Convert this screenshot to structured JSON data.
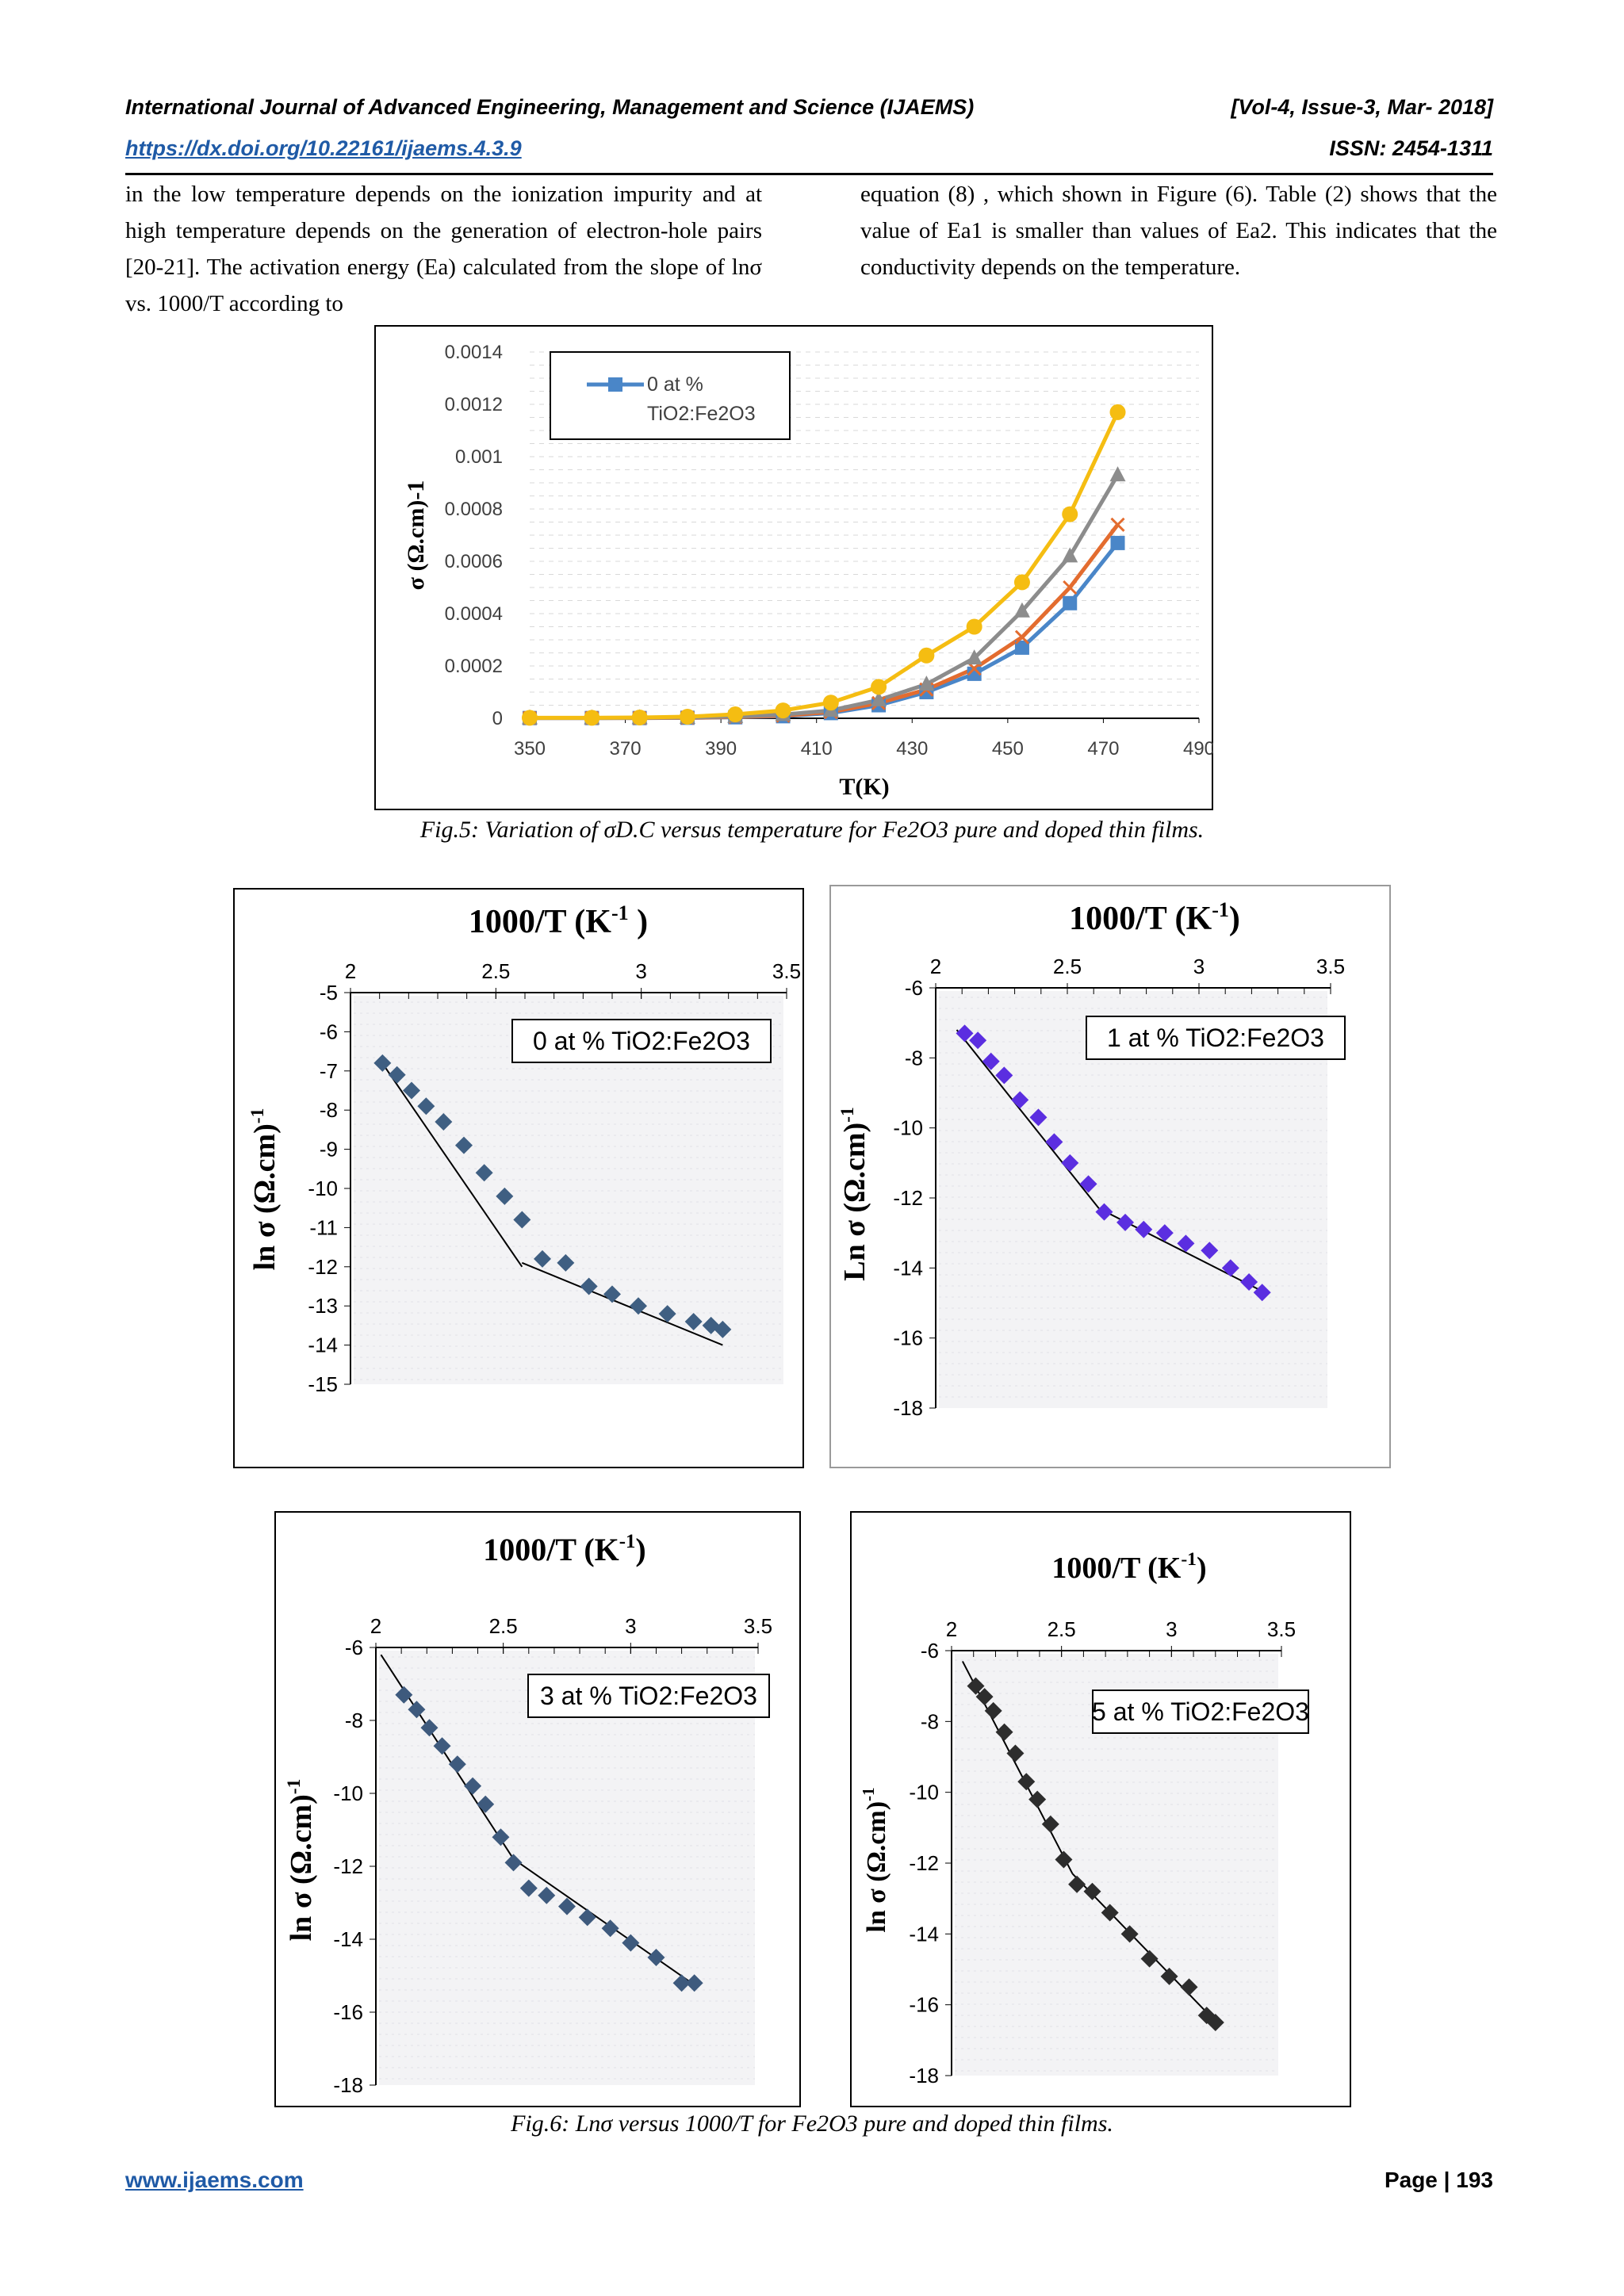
{
  "header": {
    "journal": "International Journal of Advanced Engineering, Management and Science (IJAEMS)",
    "volume": "[Vol-4, Issue-3, Mar- 2018]",
    "doi": "https://dx.doi.org/10.22161/ijaems.4.3.9",
    "issn": "ISSN: 2454-1311"
  },
  "body": {
    "left_column": "in the low temperature depends on the ionization impurity and at high temperature depends on the generation of electron-hole pairs [20-21]. The activation energy (Ea) calculated from the slope of lnσ vs. 1000/T according to",
    "right_column": "equation (8) , which shown in Figure (6). Table (2) shows that the value of Ea1 is smaller than values of Ea2. This indicates that the conductivity depends on the temperature."
  },
  "fig5": {
    "caption": "Fig.5: Variation of σD.C versus temperature for Fe2O3 pure and doped thin films."
  },
  "fig6": {
    "caption": "Fig.6: Lnσ versus 1000/T for Fe2O3 pure and doped thin films."
  },
  "footer": {
    "website": "www.ijaems.com",
    "page": "Page | 193"
  },
  "chart_data": [
    {
      "id": "fig5",
      "type": "line",
      "xlabel": "T(K)",
      "ylabel": "σ (Ω.cm)-1",
      "xlim": [
        350,
        490
      ],
      "ylim": [
        0,
        0.0014
      ],
      "xticks": [
        350,
        370,
        390,
        410,
        430,
        450,
        470,
        490
      ],
      "yticks": [
        0,
        0.0002,
        0.0004,
        0.0006,
        0.0008,
        0.001,
        0.0012,
        0.0014
      ],
      "ytick_labels": [
        "0",
        "0.0002",
        "0.0004",
        "0.0006",
        "0.0008",
        "0.001",
        "0.0012",
        "0.0014"
      ],
      "grid": "dashed horizontal",
      "legend": "top-left",
      "legend_text": "0 at % TiO2:Fe2O3",
      "x": [
        350,
        363,
        373,
        383,
        393,
        403,
        413,
        423,
        433,
        443,
        453,
        463,
        473
      ],
      "series": [
        {
          "name": "0 at % TiO2:Fe2O3",
          "color": "#4a86c8",
          "marker": "square",
          "values": [
            1e-06,
            1e-06,
            1e-06,
            2e-06,
            4e-06,
            8e-06,
            2e-05,
            5e-05,
            0.0001,
            0.00017,
            0.00027,
            0.00044,
            0.00067
          ]
        },
        {
          "color": "#e36c2f",
          "marker": "x",
          "values": [
            1e-06,
            1e-06,
            1e-06,
            2e-06,
            5e-06,
            1e-05,
            2.4e-05,
            5.8e-05,
            0.00011,
            0.00019,
            0.00031,
            0.0005,
            0.00074
          ]
        },
        {
          "color": "#8c8c8c",
          "marker": "triangle",
          "values": [
            1e-06,
            1e-06,
            2e-06,
            3e-06,
            7e-06,
            1.4e-05,
            3e-05,
            7e-05,
            0.00013,
            0.00023,
            0.00041,
            0.00062,
            0.00093
          ]
        },
        {
          "color": "#f5bd12",
          "marker": "circle",
          "values": [
            2e-06,
            2e-06,
            3e-06,
            6e-06,
            1.5e-05,
            3e-05,
            6e-05,
            0.00012,
            0.00024,
            0.00035,
            0.00052,
            0.00078,
            0.00117
          ]
        }
      ]
    },
    {
      "id": "fig6a",
      "type": "scatter",
      "title": "1000/T (K-1 )",
      "ylabel": "ln σ (Ω.cm)-1",
      "legend_text": "0 at % TiO2:Fe2O3",
      "xlim": [
        2,
        3.5
      ],
      "ylim": [
        -15,
        -5
      ],
      "xticks": [
        2,
        2.5,
        3,
        3.5
      ],
      "yticks": [
        -5,
        -6,
        -7,
        -8,
        -9,
        -10,
        -11,
        -12,
        -13,
        -14,
        -15
      ],
      "color": "#3f5f82",
      "x": [
        2.11,
        2.16,
        2.21,
        2.26,
        2.32,
        2.39,
        2.46,
        2.53,
        2.59,
        2.66,
        2.74,
        2.82,
        2.9,
        2.99,
        3.09,
        3.18,
        3.24,
        3.28
      ],
      "y": [
        -6.8,
        -7.1,
        -7.5,
        -7.9,
        -8.3,
        -8.9,
        -9.6,
        -10.2,
        -10.8,
        -11.8,
        -11.9,
        -12.5,
        -12.7,
        -13.0,
        -13.2,
        -13.4,
        -13.5,
        -13.6
      ],
      "fit_lines": [
        [
          [
            2.1,
            -6.7
          ],
          [
            2.59,
            -12.0
          ]
        ],
        [
          [
            2.59,
            -11.9
          ],
          [
            3.28,
            -14.0
          ]
        ]
      ]
    },
    {
      "id": "fig6b",
      "type": "scatter",
      "title": "1000/T (K-1)",
      "ylabel": "Ln σ (Ω.cm)-1",
      "legend_text": "1 at % TiO2:Fe2O3",
      "xlim": [
        2,
        3.5
      ],
      "ylim": [
        -18,
        -6
      ],
      "xticks": [
        2,
        2.5,
        3,
        3.5
      ],
      "yticks": [
        -6,
        -8,
        -10,
        -12,
        -14,
        -16,
        -18
      ],
      "color": "#5b2ee0",
      "x": [
        2.11,
        2.16,
        2.21,
        2.26,
        2.32,
        2.39,
        2.45,
        2.51,
        2.58,
        2.64,
        2.72,
        2.79,
        2.87,
        2.95,
        3.04,
        3.12,
        3.19,
        3.24
      ],
      "y": [
        -7.3,
        -7.5,
        -8.1,
        -8.5,
        -9.2,
        -9.7,
        -10.4,
        -11.0,
        -11.6,
        -12.4,
        -12.7,
        -12.9,
        -13.0,
        -13.3,
        -13.5,
        -14.0,
        -14.4,
        -14.7
      ],
      "fit_lines": [
        [
          [
            2.08,
            -7.2
          ],
          [
            2.62,
            -12.3
          ]
        ],
        [
          [
            2.62,
            -12.3
          ],
          [
            3.25,
            -14.7
          ]
        ]
      ]
    },
    {
      "id": "fig6c",
      "type": "scatter",
      "title": "1000/T (K-1)",
      "ylabel": "ln σ (Ω.cm)-1",
      "legend_text": "3 at % TiO2:Fe2O3",
      "xlim": [
        2,
        3.5
      ],
      "ylim": [
        -18,
        -6
      ],
      "xticks": [
        2,
        2.5,
        3,
        3.5
      ],
      "yticks": [
        -6,
        -8,
        -10,
        -12,
        -14,
        -16,
        -18
      ],
      "color": "#3e5a7d",
      "x": [
        2.11,
        2.16,
        2.21,
        2.26,
        2.32,
        2.38,
        2.43,
        2.49,
        2.54,
        2.6,
        2.67,
        2.75,
        2.83,
        2.92,
        3.0,
        3.1,
        3.2,
        3.25
      ],
      "y": [
        -7.3,
        -7.7,
        -8.2,
        -8.7,
        -9.2,
        -9.8,
        -10.3,
        -11.2,
        -11.9,
        -12.6,
        -12.8,
        -13.1,
        -13.4,
        -13.7,
        -14.1,
        -14.5,
        -15.2,
        -15.2
      ],
      "fit_lines": [
        [
          [
            2.02,
            -6.2
          ],
          [
            2.54,
            -11.8
          ]
        ],
        [
          [
            2.54,
            -11.8
          ],
          [
            3.26,
            -15.3
          ]
        ]
      ]
    },
    {
      "id": "fig6d",
      "type": "scatter",
      "title": "1000/T (K-1)",
      "ylabel": "ln σ (Ω.cm)-1",
      "legend_text": "5 at % TiO2:Fe2O3",
      "xlim": [
        2,
        3.5
      ],
      "ylim": [
        -18,
        -6
      ],
      "xticks": [
        2,
        2.5,
        3,
        3.5
      ],
      "yticks": [
        -6,
        -8,
        -10,
        -12,
        -14,
        -16,
        -18
      ],
      "color": "#2d2d2d",
      "x": [
        2.11,
        2.15,
        2.19,
        2.24,
        2.29,
        2.34,
        2.39,
        2.45,
        2.51,
        2.57,
        2.64,
        2.72,
        2.81,
        2.9,
        2.99,
        3.08,
        3.16,
        3.2
      ],
      "y": [
        -7.0,
        -7.3,
        -7.7,
        -8.3,
        -8.9,
        -9.7,
        -10.2,
        -10.9,
        -11.9,
        -12.6,
        -12.8,
        -13.4,
        -14.0,
        -14.7,
        -15.2,
        -15.5,
        -16.3,
        -16.5
      ],
      "fit_lines": [
        [
          [
            2.05,
            -6.3
          ],
          [
            2.55,
            -12.3
          ]
        ],
        [
          [
            2.55,
            -12.3
          ],
          [
            3.22,
            -16.6
          ]
        ]
      ]
    }
  ]
}
